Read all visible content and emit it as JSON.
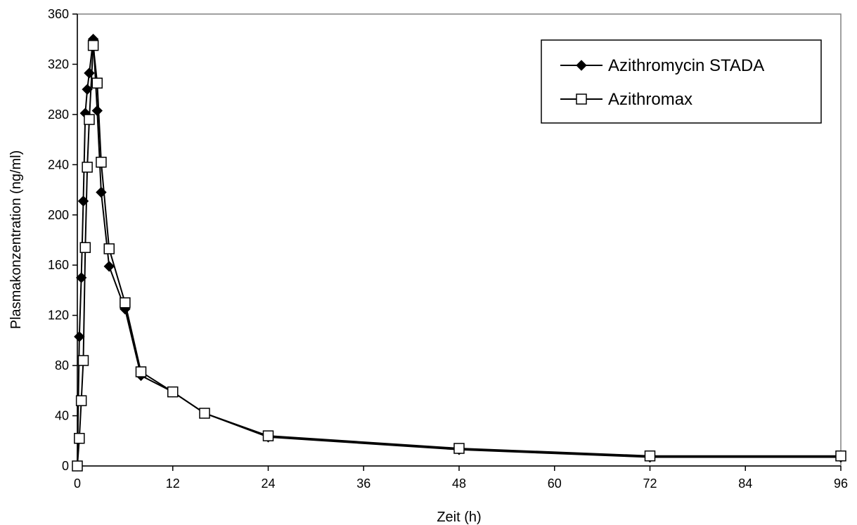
{
  "chart_data": {
    "type": "line",
    "xlabel": "Zeit (h)",
    "ylabel": "Plasmakonzentration (ng/ml)",
    "xlim": [
      0,
      96
    ],
    "ylim": [
      0,
      360
    ],
    "xticks": [
      0,
      12,
      24,
      36,
      48,
      60,
      72,
      84,
      96
    ],
    "yticks": [
      0,
      40,
      80,
      120,
      160,
      200,
      240,
      280,
      320,
      360
    ],
    "grid": false,
    "legend_position": "top-right",
    "series": [
      {
        "name": "Azithromycin STADA",
        "marker": "filled-diamond",
        "color": "#000000",
        "x": [
          0,
          0.25,
          0.5,
          0.75,
          1,
          1.25,
          1.5,
          2,
          2.5,
          3,
          4,
          6,
          8,
          12,
          16,
          24,
          48,
          72,
          96
        ],
        "y": [
          0,
          103,
          150,
          211,
          281,
          300,
          313,
          340,
          283,
          218,
          159,
          125,
          72,
          59,
          42,
          23,
          13,
          7,
          7
        ]
      },
      {
        "name": "Azithromax",
        "marker": "open-square",
        "color": "#000000",
        "x": [
          0,
          0.25,
          0.5,
          0.75,
          1,
          1.25,
          1.5,
          2,
          2.5,
          3,
          4,
          6,
          8,
          12,
          16,
          24,
          48,
          72,
          96
        ],
        "y": [
          0,
          22,
          52,
          84,
          174,
          238,
          276,
          335,
          305,
          242,
          173,
          130,
          75,
          59,
          42,
          24,
          14,
          8,
          8
        ]
      }
    ]
  }
}
